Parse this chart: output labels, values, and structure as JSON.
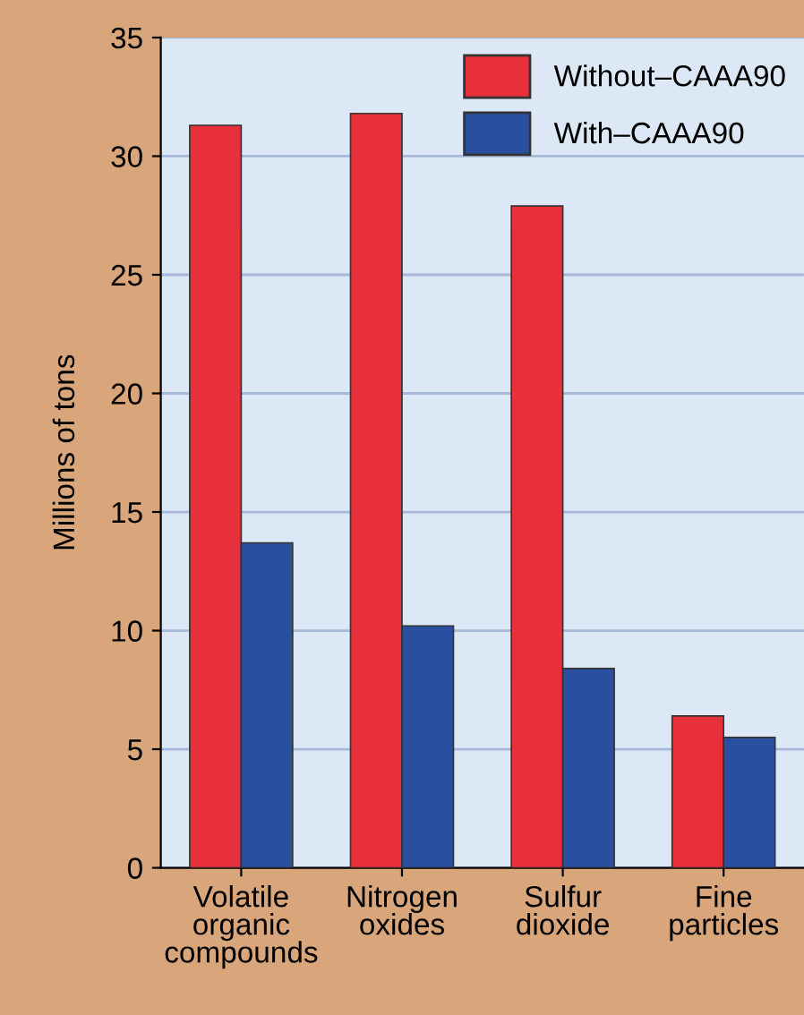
{
  "chart_data": {
    "type": "bar",
    "ylabel": "Millions of tons",
    "categories": [
      "Volatile\norganic\ncompounds",
      "Nitrogen\noxides",
      "Sulfur\ndioxide",
      "Fine\nparticles"
    ],
    "series": [
      {
        "name": "Without–CAAA90",
        "color": "#e8303c",
        "values": [
          31.3,
          31.8,
          27.9,
          6.4
        ]
      },
      {
        "name": "With–CAAA90",
        "color": "#2a4fa0",
        "values": [
          13.7,
          10.2,
          8.4,
          5.5
        ]
      }
    ],
    "ylim": [
      0,
      35
    ],
    "yticks": [
      0,
      5,
      10,
      15,
      20,
      25,
      30,
      35
    ],
    "grid": "y",
    "legend": "top right"
  }
}
